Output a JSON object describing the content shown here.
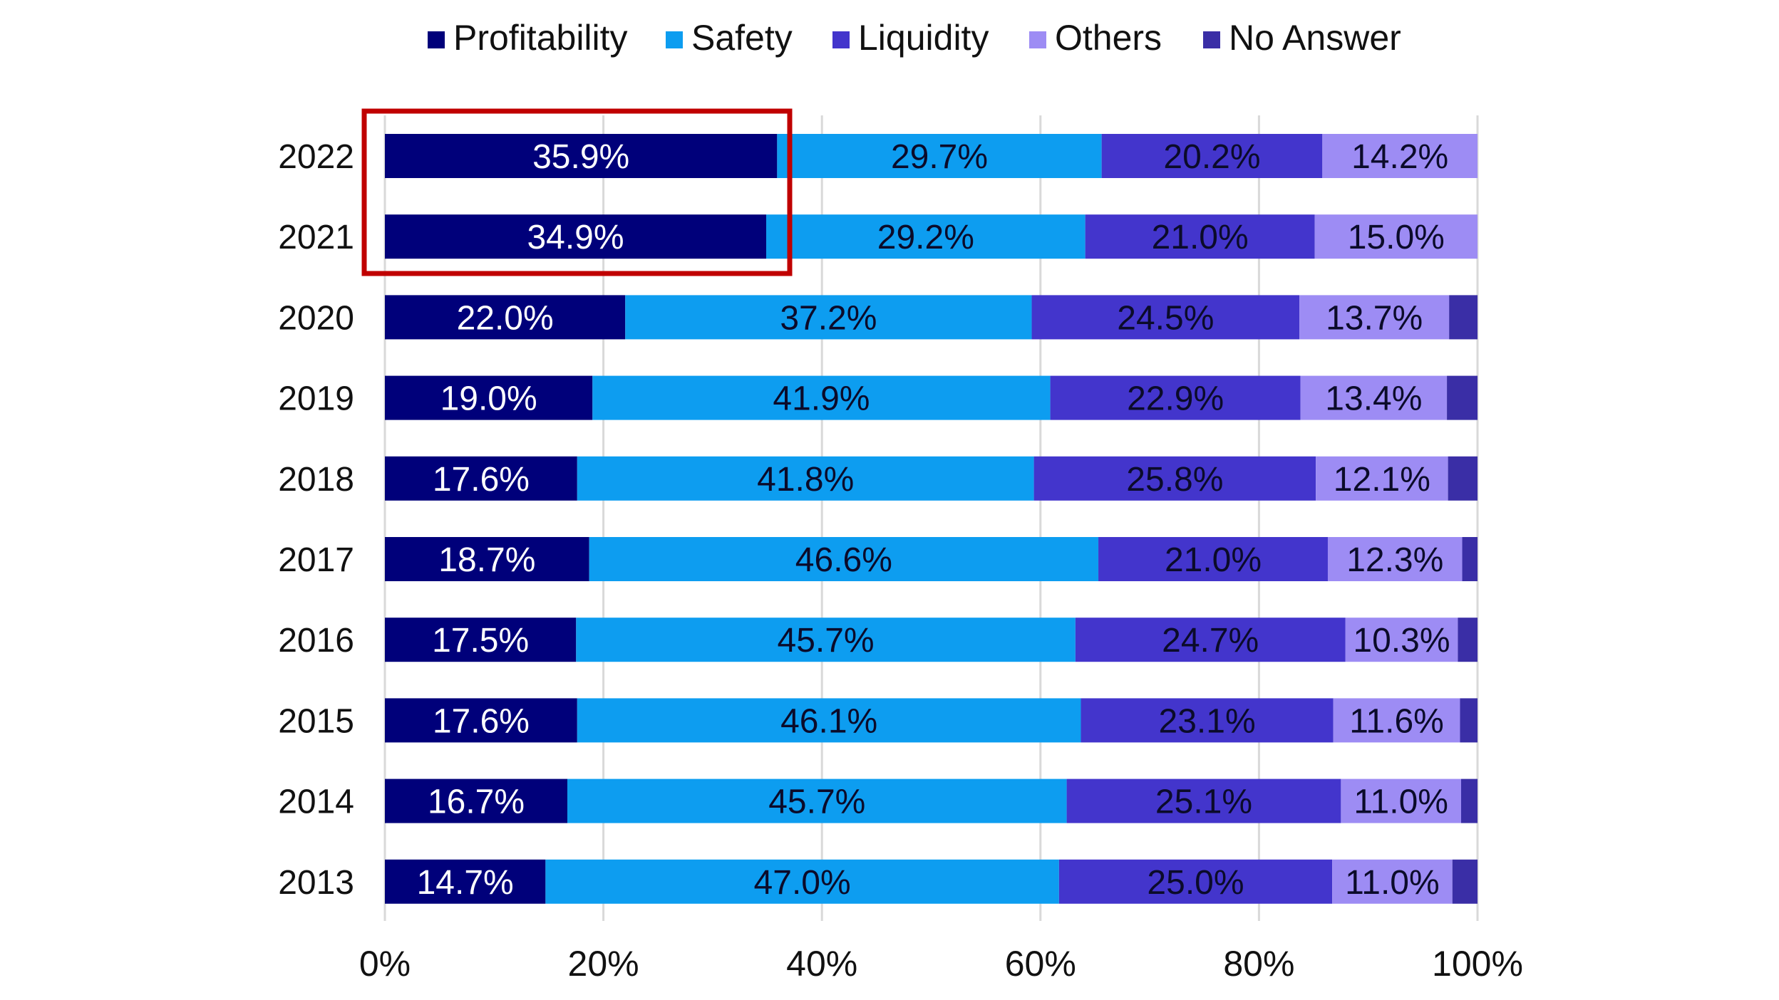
{
  "chart_data": {
    "type": "bar",
    "orientation": "horizontal",
    "stacked": true,
    "title": "",
    "xlabel": "",
    "ylabel": "",
    "xlim": [
      0,
      100
    ],
    "x_ticks": [
      "0%",
      "20%",
      "40%",
      "60%",
      "80%",
      "100%"
    ],
    "x_tick_values": [
      0,
      20,
      40,
      60,
      80,
      100
    ],
    "grid": "vertical",
    "legend_position": "top",
    "categories": [
      "2022",
      "2021",
      "2020",
      "2019",
      "2018",
      "2017",
      "2016",
      "2015",
      "2014",
      "2013"
    ],
    "series": [
      {
        "name": "Profitability",
        "color": "#00007a",
        "label_color": "#ffffff",
        "values": [
          35.9,
          34.9,
          22.0,
          19.0,
          17.6,
          18.7,
          17.5,
          17.6,
          16.7,
          14.7
        ],
        "labels": [
          "35.9%",
          "34.9%",
          "22.0%",
          "19.0%",
          "17.6%",
          "18.7%",
          "17.5%",
          "17.6%",
          "16.7%",
          "14.7%"
        ]
      },
      {
        "name": "Safety",
        "color": "#0d9df0",
        "label_color": "#0b0b2a",
        "values": [
          29.7,
          29.2,
          37.2,
          41.9,
          41.8,
          46.6,
          45.7,
          46.1,
          45.7,
          47.0
        ],
        "labels": [
          "29.7%",
          "29.2%",
          "37.2%",
          "41.9%",
          "41.8%",
          "46.6%",
          "45.7%",
          "46.1%",
          "45.7%",
          "47.0%"
        ]
      },
      {
        "name": "Liquidity",
        "color": "#4335cc",
        "label_color": "#0b0b2a",
        "values": [
          20.2,
          21.0,
          24.5,
          22.9,
          25.8,
          21.0,
          24.7,
          23.1,
          25.1,
          25.0
        ],
        "labels": [
          "20.2%",
          "21.0%",
          "24.5%",
          "22.9%",
          "25.8%",
          "21.0%",
          "24.7%",
          "23.1%",
          "25.1%",
          "25.0%"
        ]
      },
      {
        "name": "Others",
        "color": "#9d8cf4",
        "label_color": "#0b0b2a",
        "values": [
          14.2,
          15.0,
          13.7,
          13.4,
          12.1,
          12.3,
          10.3,
          11.6,
          11.0,
          11.0
        ],
        "labels": [
          "14.2%",
          "15.0%",
          "13.7%",
          "13.4%",
          "12.1%",
          "12.3%",
          "10.3%",
          "11.6%",
          "11.0%",
          "11.0%"
        ]
      },
      {
        "name": "No Answer",
        "color": "#3a2ea6",
        "label_color": "#0b0b2a",
        "values": [
          0.0,
          0.0,
          2.6,
          2.8,
          2.7,
          1.4,
          1.9,
          1.6,
          1.5,
          2.3
        ],
        "labels": [
          "",
          "",
          "",
          "",
          "",
          "",
          "",
          "",
          "",
          ""
        ]
      }
    ],
    "annotations": [
      {
        "type": "highlight-box",
        "color": "#c00000",
        "covers_categories": [
          "2022",
          "2021"
        ],
        "covers_series": [
          "Profitability"
        ]
      }
    ]
  }
}
